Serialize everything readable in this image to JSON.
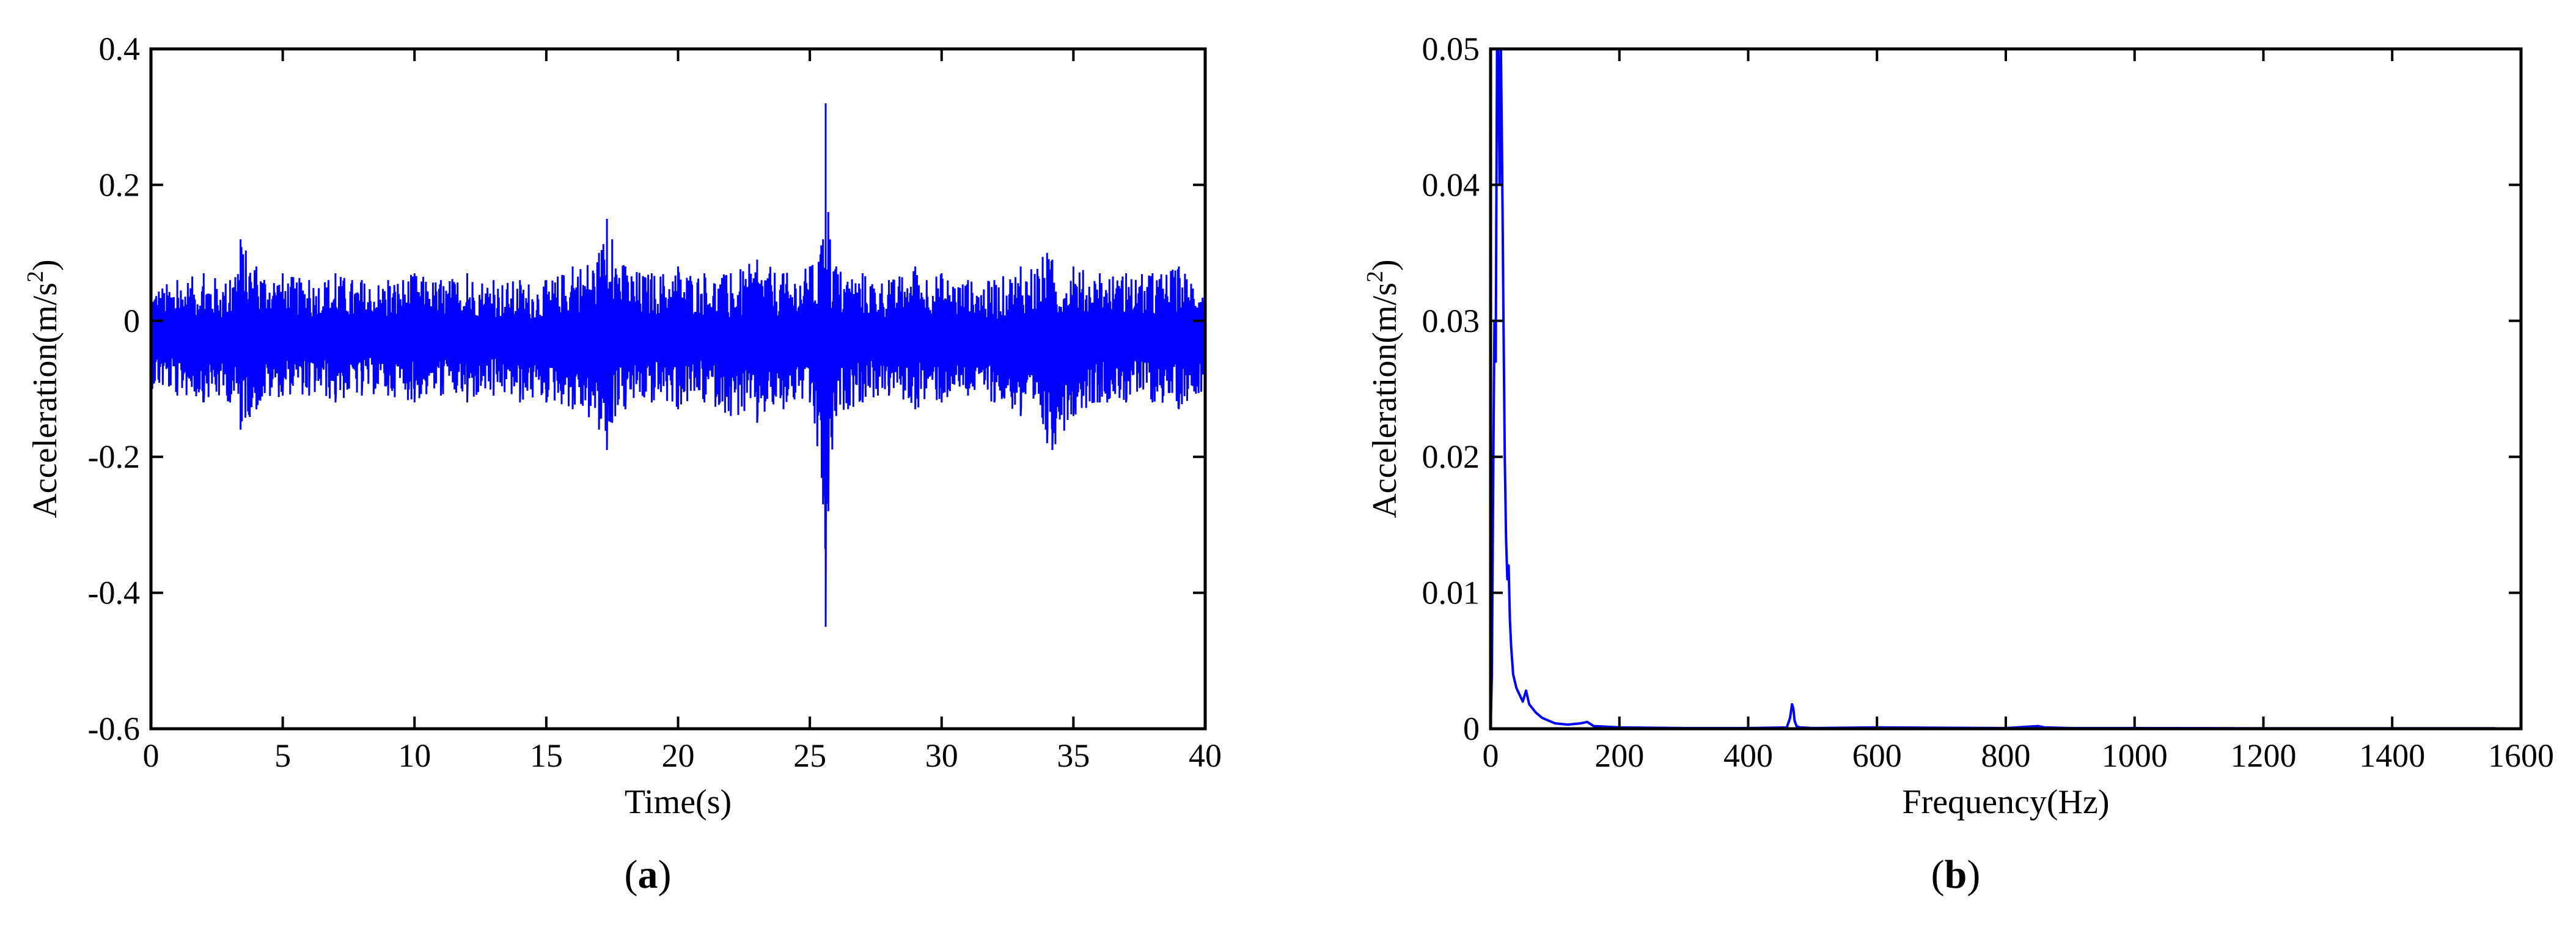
{
  "chart_data": [
    {
      "type": "line",
      "caption": "(a)",
      "xlabel": "Time(s)",
      "ylabel": "Acceleration(m/s²)",
      "xlim": [
        0,
        40
      ],
      "ylim": [
        -0.6,
        0.4
      ],
      "xticks": [
        0,
        5,
        10,
        15,
        20,
        25,
        30,
        35,
        40
      ],
      "xtick_labels": [
        "0",
        "5",
        "10",
        "15",
        "20",
        "25",
        "30",
        "35",
        "40"
      ],
      "yticks": [
        -0.6,
        -0.4,
        -0.2,
        0,
        0.2,
        0.4
      ],
      "ytick_labels": [
        "-0.6",
        "-0.4",
        "-0.2",
        "0",
        "0.2",
        "0.4"
      ],
      "grid": false,
      "series": [
        {
          "color": "#0000ff",
          "x": [
            0,
            1,
            2,
            3,
            3.4,
            4,
            5,
            6,
            7,
            8,
            9,
            10,
            11,
            12,
            13,
            14,
            15,
            16,
            17,
            17.3,
            17.5,
            18,
            19,
            20,
            21,
            22,
            23,
            24,
            25,
            25.5,
            25.6,
            25.7,
            26,
            27,
            28,
            29,
            30,
            31,
            32,
            33,
            34,
            34.2,
            35,
            36,
            37,
            38,
            39,
            40
          ],
          "y_max": [
            0.05,
            0.06,
            0.07,
            0.06,
            0.12,
            0.08,
            0.07,
            0.06,
            0.07,
            0.06,
            0.06,
            0.07,
            0.06,
            0.07,
            0.06,
            0.06,
            0.06,
            0.08,
            0.1,
            0.15,
            0.12,
            0.08,
            0.07,
            0.08,
            0.07,
            0.07,
            0.09,
            0.07,
            0.08,
            0.12,
            0.32,
            0.16,
            0.08,
            0.07,
            0.06,
            0.08,
            0.07,
            0.06,
            0.06,
            0.08,
            0.1,
            0.09,
            0.08,
            0.07,
            0.07,
            0.07,
            0.08,
            0.06
          ],
          "y_min": [
            -0.1,
            -0.11,
            -0.12,
            -0.12,
            -0.16,
            -0.13,
            -0.11,
            -0.11,
            -0.12,
            -0.11,
            -0.11,
            -0.12,
            -0.11,
            -0.12,
            -0.11,
            -0.12,
            -0.12,
            -0.13,
            -0.16,
            -0.19,
            -0.15,
            -0.13,
            -0.12,
            -0.13,
            -0.12,
            -0.14,
            -0.15,
            -0.13,
            -0.12,
            -0.27,
            -0.45,
            -0.28,
            -0.14,
            -0.12,
            -0.11,
            -0.13,
            -0.12,
            -0.11,
            -0.12,
            -0.14,
            -0.18,
            -0.19,
            -0.14,
            -0.12,
            -0.12,
            -0.12,
            -0.13,
            -0.1
          ]
        }
      ]
    },
    {
      "type": "line",
      "caption": "(b)",
      "xlabel": "Frequency(Hz)",
      "ylabel": "Acceleration(m/s²)",
      "xlim": [
        0,
        1600
      ],
      "ylim": [
        0,
        0.05
      ],
      "xticks": [
        0,
        200,
        400,
        600,
        800,
        1000,
        1200,
        1400,
        1600
      ],
      "xtick_labels": [
        "0",
        "200",
        "400",
        "600",
        "800",
        "1000",
        "1200",
        "1400",
        "1600"
      ],
      "yticks": [
        0,
        0.01,
        0.02,
        0.03,
        0.04,
        0.05
      ],
      "ytick_labels": [
        "0",
        "0.01",
        "0.02",
        "0.03",
        "0.04",
        "0.05"
      ],
      "grid": false,
      "series": [
        {
          "color": "#0000ff",
          "x": [
            0,
            2,
            4,
            6,
            8,
            10,
            12,
            14,
            16,
            18,
            20,
            22,
            24,
            26,
            28,
            30,
            32,
            35,
            40,
            45,
            50,
            55,
            60,
            65,
            70,
            80,
            90,
            100,
            120,
            140,
            150,
            160,
            200,
            300,
            400,
            460,
            465,
            468,
            470,
            472,
            475,
            480,
            500,
            600,
            800,
            850,
            860,
            900,
            1000,
            1200,
            1400,
            1560
          ],
          "y": [
            0.0,
            0.004,
            0.018,
            0.03,
            0.027,
            0.05,
            0.05,
            0.04,
            0.05,
            0.041,
            0.03,
            0.02,
            0.014,
            0.011,
            0.012,
            0.008,
            0.006,
            0.004,
            0.003,
            0.0025,
            0.002,
            0.0028,
            0.0018,
            0.0015,
            0.0012,
            0.0008,
            0.0006,
            0.0004,
            0.0003,
            0.0004,
            0.0005,
            0.0002,
            0.0001,
            5e-05,
            5e-05,
            0.0001,
            0.0008,
            0.0018,
            0.0015,
            0.0006,
            0.0002,
            0.0001,
            5e-05,
            0.0001,
            5e-05,
            0.0002,
            0.0001,
            5e-05,
            5e-05,
            3e-05,
            3e-05,
            3e-05
          ]
        }
      ]
    }
  ]
}
